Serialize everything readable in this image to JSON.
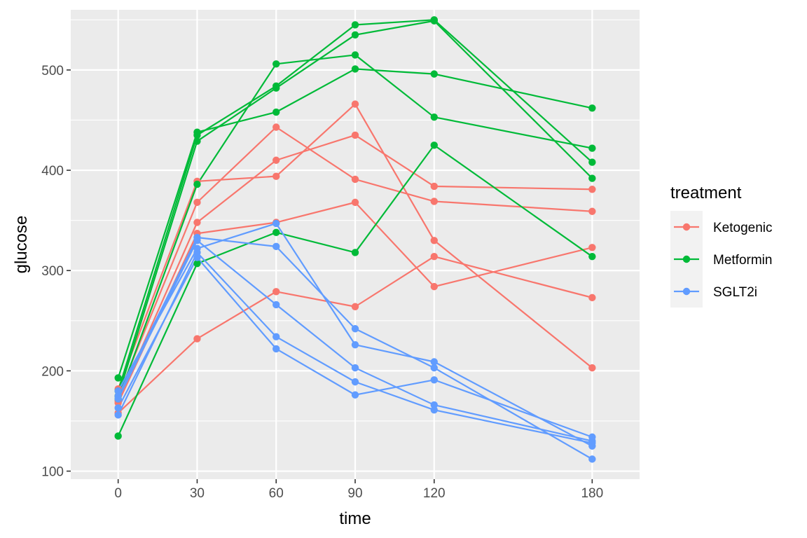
{
  "chart_data": {
    "type": "line",
    "xlabel": "time",
    "ylabel": "glucose",
    "x_ticks": [
      0,
      30,
      60,
      90,
      120,
      180
    ],
    "y_ticks": [
      100,
      200,
      300,
      400,
      500
    ],
    "xlim": [
      -18,
      198
    ],
    "ylim": [
      92,
      560
    ],
    "grid": true,
    "legend": {
      "title": "treatment",
      "placement": "right"
    },
    "colors": {
      "Ketogenic": "#F8766D",
      "Metformin": "#00BA38",
      "SGLT2i": "#619CFF"
    },
    "panel_background": "#EBEBEB",
    "x": [
      0,
      30,
      60,
      90,
      120,
      180
    ],
    "series": [
      {
        "group": "Ketogenic",
        "values": [
          182,
          389,
          394,
          466,
          330,
          203
        ]
      },
      {
        "group": "Ketogenic",
        "values": [
          175,
          368,
          443,
          391,
          369,
          359
        ]
      },
      {
        "group": "Ketogenic",
        "values": [
          170,
          348,
          410,
          435,
          384,
          381
        ]
      },
      {
        "group": "Ketogenic",
        "values": [
          168,
          337,
          348,
          368,
          284,
          323
        ]
      },
      {
        "group": "Ketogenic",
        "values": [
          158,
          232,
          279,
          264,
          314,
          273
        ]
      },
      {
        "group": "Metformin",
        "values": [
          193,
          438,
          458,
          501,
          496,
          462
        ]
      },
      {
        "group": "Metformin",
        "values": [
          180,
          435,
          484,
          545,
          550,
          408
        ]
      },
      {
        "group": "Metformin",
        "values": [
          175,
          429,
          482,
          535,
          549,
          392
        ]
      },
      {
        "group": "Metformin",
        "values": [
          172,
          386,
          506,
          515,
          453,
          422
        ]
      },
      {
        "group": "Metformin",
        "values": [
          135,
          307,
          338,
          318,
          425,
          314
        ]
      },
      {
        "group": "SGLT2i",
        "values": [
          180,
          322,
          347,
          226,
          209,
          125
        ]
      },
      {
        "group": "SGLT2i",
        "values": [
          175,
          333,
          324,
          242,
          203,
          112
        ]
      },
      {
        "group": "SGLT2i",
        "values": [
          172,
          330,
          266,
          203,
          166,
          130
        ]
      },
      {
        "group": "SGLT2i",
        "values": [
          163,
          313,
          222,
          176,
          191,
          134
        ]
      },
      {
        "group": "SGLT2i",
        "values": [
          156,
          318,
          234,
          189,
          161,
          128
        ]
      }
    ]
  }
}
